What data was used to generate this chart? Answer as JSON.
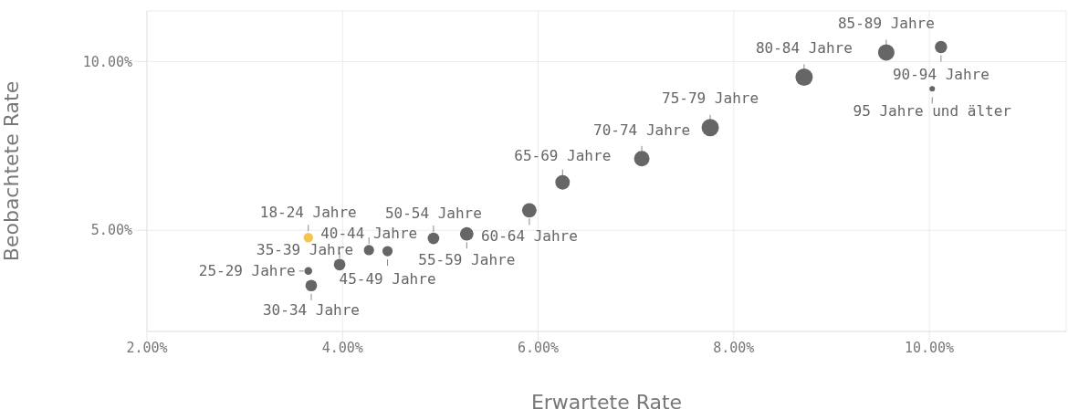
{
  "chart_data": {
    "type": "bubble",
    "xlabel": "Erwartete Rate",
    "ylabel": "Beobachtete Rate",
    "x": [
      3.65,
      3.65,
      3.68,
      3.97,
      4.27,
      4.46,
      4.93,
      5.27,
      5.91,
      6.25,
      7.06,
      7.76,
      8.72,
      9.56,
      10.12,
      10.03
    ],
    "values": [
      4.78,
      3.79,
      3.36,
      3.98,
      4.41,
      4.38,
      4.76,
      4.89,
      5.59,
      6.42,
      7.12,
      8.04,
      9.54,
      10.27,
      10.43,
      9.19
    ],
    "sizes": [
      0.3,
      0.2,
      0.45,
      0.45,
      0.35,
      0.35,
      0.45,
      0.6,
      0.7,
      0.7,
      0.8,
      1,
      1,
      0.9,
      0.5,
      0.08
    ],
    "colors": [
      "#f6c352",
      "#666666",
      "#666666",
      "#666666",
      "#666666",
      "#666666",
      "#666666",
      "#666666",
      "#666666",
      "#666666",
      "#666666",
      "#666666",
      "#666666",
      "#666666",
      "#666666",
      "#666666"
    ],
    "xlim": [
      2,
      11.4
    ],
    "ylim": [
      2,
      11.5
    ],
    "xticks": [
      {
        "value": 2,
        "label": "2.00%"
      },
      {
        "value": 4,
        "label": "4.00%"
      },
      {
        "value": 6,
        "label": "6.00%"
      },
      {
        "value": 8,
        "label": "8.00%"
      },
      {
        "value": 10,
        "label": "10.00%"
      }
    ],
    "yticks": [
      {
        "value": 5,
        "label": "5.00%"
      },
      {
        "value": 10,
        "label": "10.00%"
      }
    ],
    "grid": true,
    "legend": false,
    "annotations": [
      {
        "text": "18-24 Jahre",
        "x": 3.65,
        "y": 4.78
      },
      {
        "text": "25-29 Jahre",
        "x": 3.65,
        "y": 3.79
      },
      {
        "text": "30-34 Jahre",
        "x": 3.68,
        "y": 3.36
      },
      {
        "text": "35-39 Jahre",
        "x": 3.97,
        "y": 3.98
      },
      {
        "text": "40-44 Jahre",
        "x": 4.27,
        "y": 4.41
      },
      {
        "text": "45-49 Jahre",
        "x": 4.46,
        "y": 4.38
      },
      {
        "text": "50-54 Jahre",
        "x": 4.93,
        "y": 4.76
      },
      {
        "text": "55-59 Jahre",
        "x": 5.27,
        "y": 4.89
      },
      {
        "text": "60-64 Jahre",
        "x": 5.91,
        "y": 5.59
      },
      {
        "text": "65-69 Jahre",
        "x": 6.25,
        "y": 6.42
      },
      {
        "text": "70-74 Jahre",
        "x": 7.06,
        "y": 7.12
      },
      {
        "text": "75-79 Jahre",
        "x": 7.76,
        "y": 8.04
      },
      {
        "text": "80-84 Jahre",
        "x": 8.72,
        "y": 9.54
      },
      {
        "text": "85-89 Jahre",
        "x": 9.56,
        "y": 10.27
      },
      {
        "text": "90-94 Jahre",
        "x": 10.12,
        "y": 10.43
      },
      {
        "text": "95 Jahre und älter",
        "x": 10.03,
        "y": 9.19
      }
    ]
  }
}
